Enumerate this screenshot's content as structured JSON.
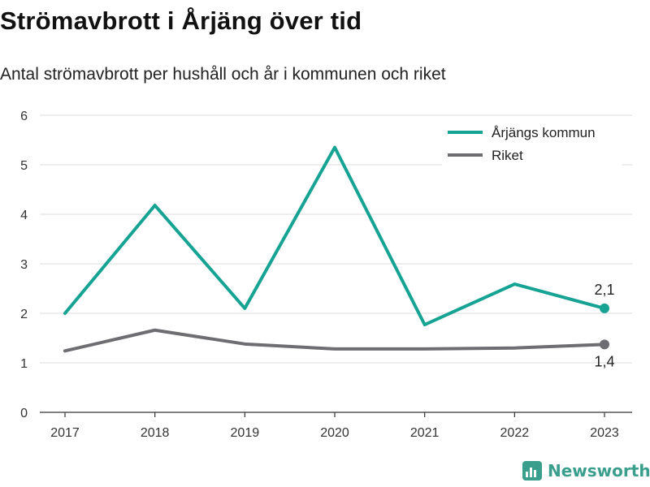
{
  "header": {
    "title": "Strömavbrott i Årjäng över tid",
    "subtitle": "Antal strömavbrott per hushåll och år i kommunen och riket"
  },
  "chart_data": {
    "type": "line",
    "title": "Strömavbrott i Årjäng över tid",
    "subtitle": "Antal strömavbrott per hushåll och år i kommunen och riket",
    "xlabel": "",
    "ylabel": "",
    "x": [
      "2017",
      "2018",
      "2019",
      "2020",
      "2021",
      "2022",
      "2023"
    ],
    "ylim": [
      0,
      6
    ],
    "yticks": [
      "0",
      "1",
      "2",
      "3",
      "4",
      "5",
      "6"
    ],
    "grid": true,
    "legend_position": "top-right",
    "series": [
      {
        "name": "Årjängs kommun",
        "color": "#16a394",
        "values": [
          2.0,
          4.18,
          2.1,
          5.35,
          1.77,
          2.59,
          2.1
        ],
        "end_label": "2,1"
      },
      {
        "name": "Riket",
        "color": "#6d6d72",
        "values": [
          1.24,
          1.66,
          1.38,
          1.28,
          1.28,
          1.3,
          1.37
        ],
        "end_label": "1,4"
      }
    ]
  },
  "brand": {
    "name": "Newsworthy",
    "icon": "newsworthy-logo-icon",
    "color": "#3a9e8d"
  }
}
